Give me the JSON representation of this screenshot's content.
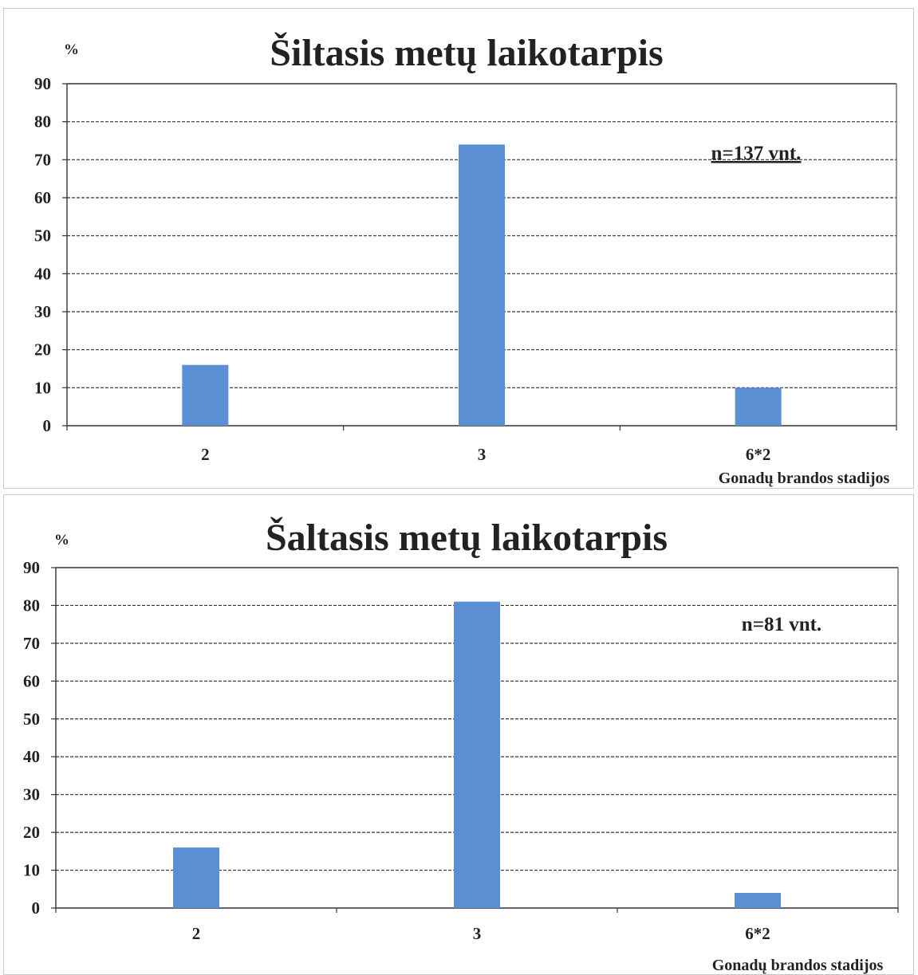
{
  "chart_data": [
    {
      "type": "bar",
      "title": "Šiltasis metų laikotarpis",
      "ylabel": "%",
      "xlabel": "Gonadų brandos stadijos",
      "categories": [
        "2",
        "3",
        "6*2"
      ],
      "values": [
        16,
        74,
        10
      ],
      "ylim": [
        0,
        90
      ],
      "yticks": [
        0,
        10,
        20,
        30,
        40,
        50,
        60,
        70,
        80,
        90
      ],
      "grid": true,
      "annotation": "n=137 vnt.",
      "bar_color": "#5b8fd3"
    },
    {
      "type": "bar",
      "title": "Šaltasis metų laikotarpis",
      "ylabel": "%",
      "xlabel": "Gonadų brandos stadijos",
      "categories": [
        "2",
        "3",
        "6*2"
      ],
      "values": [
        16,
        81,
        4
      ],
      "ylim": [
        0,
        90
      ],
      "yticks": [
        0,
        10,
        20,
        30,
        40,
        50,
        60,
        70,
        80,
        90
      ],
      "grid": true,
      "annotation": "n=81 vnt.",
      "bar_color": "#5b8fd3"
    }
  ]
}
